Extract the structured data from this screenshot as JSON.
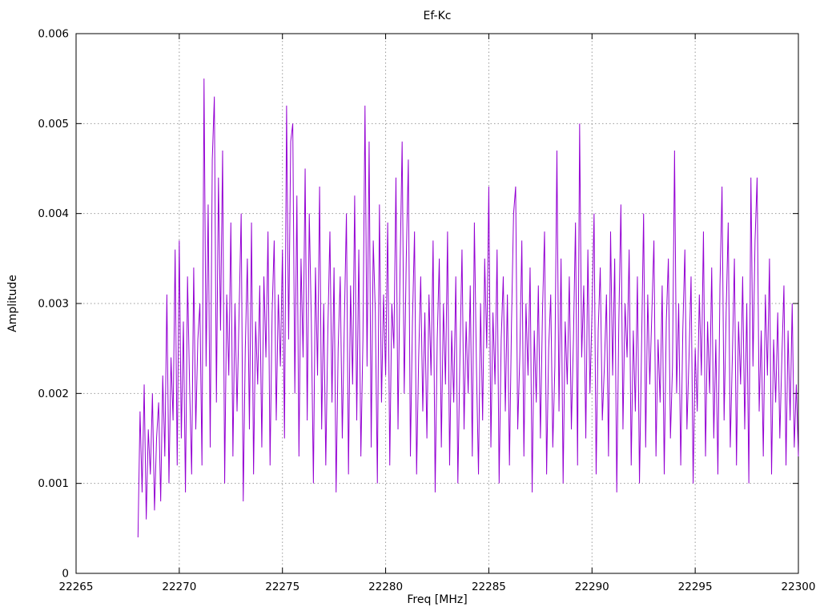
{
  "chart_data": {
    "type": "line",
    "title": "Ef-Kc",
    "xlabel": "Freq [MHz]",
    "ylabel": "Amplitude",
    "xlim": [
      22265,
      22300
    ],
    "ylim": [
      0,
      0.006
    ],
    "x_ticks": [
      22265,
      22270,
      22275,
      22280,
      22285,
      22290,
      22295,
      22300
    ],
    "y_ticks": [
      0,
      0.001,
      0.002,
      0.003,
      0.004,
      0.005,
      0.006
    ],
    "grid": true,
    "legend_position": "none",
    "line_color": "#9400D3",
    "background_color": "#ffffff",
    "series": [
      {
        "name": "Ef-Kc",
        "x_start": 22268.0,
        "x_step": 0.1,
        "values": [
          0.0004,
          0.0018,
          0.0009,
          0.0021,
          0.0006,
          0.0016,
          0.0011,
          0.002,
          0.0007,
          0.0015,
          0.0019,
          0.0008,
          0.0022,
          0.0013,
          0.0031,
          0.001,
          0.0024,
          0.0017,
          0.0036,
          0.0012,
          0.0037,
          0.0015,
          0.0028,
          0.0009,
          0.0033,
          0.0021,
          0.0011,
          0.0034,
          0.0016,
          0.0026,
          0.003,
          0.0012,
          0.0055,
          0.0023,
          0.0041,
          0.0014,
          0.0046,
          0.0053,
          0.0019,
          0.0044,
          0.0027,
          0.0047,
          0.001,
          0.0031,
          0.0022,
          0.0039,
          0.0013,
          0.003,
          0.0018,
          0.0029,
          0.004,
          0.0008,
          0.0025,
          0.0035,
          0.0016,
          0.0039,
          0.0011,
          0.0028,
          0.0021,
          0.0032,
          0.0014,
          0.0033,
          0.0024,
          0.0038,
          0.0012,
          0.0029,
          0.0037,
          0.0017,
          0.0031,
          0.0023,
          0.0036,
          0.0015,
          0.0052,
          0.0026,
          0.0048,
          0.005,
          0.002,
          0.0042,
          0.0013,
          0.0035,
          0.0024,
          0.0045,
          0.0017,
          0.004,
          0.0028,
          0.001,
          0.0034,
          0.0022,
          0.0043,
          0.0016,
          0.003,
          0.0012,
          0.0027,
          0.0038,
          0.0019,
          0.0034,
          0.0009,
          0.0025,
          0.0033,
          0.0015,
          0.0028,
          0.004,
          0.0011,
          0.0032,
          0.0021,
          0.0042,
          0.0017,
          0.0036,
          0.0013,
          0.0026,
          0.0052,
          0.0023,
          0.0048,
          0.0014,
          0.0037,
          0.0029,
          0.001,
          0.0041,
          0.0019,
          0.0031,
          0.0022,
          0.0039,
          0.0012,
          0.003,
          0.0025,
          0.0044,
          0.0016,
          0.0034,
          0.0048,
          0.002,
          0.0035,
          0.0046,
          0.0013,
          0.0028,
          0.0038,
          0.0011,
          0.0024,
          0.0033,
          0.0018,
          0.0029,
          0.0015,
          0.0031,
          0.0022,
          0.0037,
          0.0009,
          0.0026,
          0.0035,
          0.0014,
          0.003,
          0.0021,
          0.0038,
          0.0012,
          0.0027,
          0.0019,
          0.0033,
          0.001,
          0.0024,
          0.0036,
          0.0016,
          0.0028,
          0.002,
          0.0032,
          0.0013,
          0.0039,
          0.0023,
          0.0011,
          0.003,
          0.0017,
          0.0035,
          0.0025,
          0.0043,
          0.0014,
          0.0029,
          0.0021,
          0.0036,
          0.001,
          0.0026,
          0.0033,
          0.0018,
          0.0031,
          0.0012,
          0.0028,
          0.004,
          0.0043,
          0.0016,
          0.0024,
          0.0037,
          0.0013,
          0.003,
          0.0022,
          0.0034,
          0.0009,
          0.0027,
          0.0019,
          0.0032,
          0.0015,
          0.0029,
          0.0038,
          0.0011,
          0.0025,
          0.0031,
          0.0014,
          0.0023,
          0.0047,
          0.0018,
          0.0035,
          0.001,
          0.0028,
          0.0021,
          0.0033,
          0.0016,
          0.0026,
          0.0039,
          0.0012,
          0.005,
          0.0024,
          0.0032,
          0.0015,
          0.0036,
          0.002,
          0.0029,
          0.004,
          0.0011,
          0.0027,
          0.0034,
          0.0017,
          0.0023,
          0.0031,
          0.0013,
          0.0038,
          0.0022,
          0.0035,
          0.0009,
          0.0028,
          0.0041,
          0.0016,
          0.003,
          0.0024,
          0.0036,
          0.0012,
          0.0027,
          0.0018,
          0.0033,
          0.001,
          0.0025,
          0.004,
          0.0014,
          0.0031,
          0.0021,
          0.0029,
          0.0037,
          0.0013,
          0.0026,
          0.0019,
          0.0032,
          0.0011,
          0.0028,
          0.0035,
          0.0015,
          0.0023,
          0.0047,
          0.002,
          0.003,
          0.0012,
          0.0027,
          0.0036,
          0.0016,
          0.0024,
          0.0033,
          0.001,
          0.0025,
          0.0018,
          0.0031,
          0.0022,
          0.0038,
          0.0013,
          0.0028,
          0.002,
          0.0034,
          0.0015,
          0.0026,
          0.0011,
          0.0032,
          0.0043,
          0.0017,
          0.0029,
          0.0039,
          0.0014,
          0.0024,
          0.0035,
          0.0012,
          0.0028,
          0.0021,
          0.0033,
          0.0016,
          0.003,
          0.001,
          0.0044,
          0.0023,
          0.0037,
          0.0044,
          0.0018,
          0.0027,
          0.0013,
          0.0031,
          0.0022,
          0.0035,
          0.0011,
          0.0026,
          0.0019,
          0.0029,
          0.0015,
          0.0024,
          0.0032,
          0.0012,
          0.0027,
          0.0017,
          0.003,
          0.0014,
          0.0021,
          0.0013
        ]
      }
    ]
  }
}
